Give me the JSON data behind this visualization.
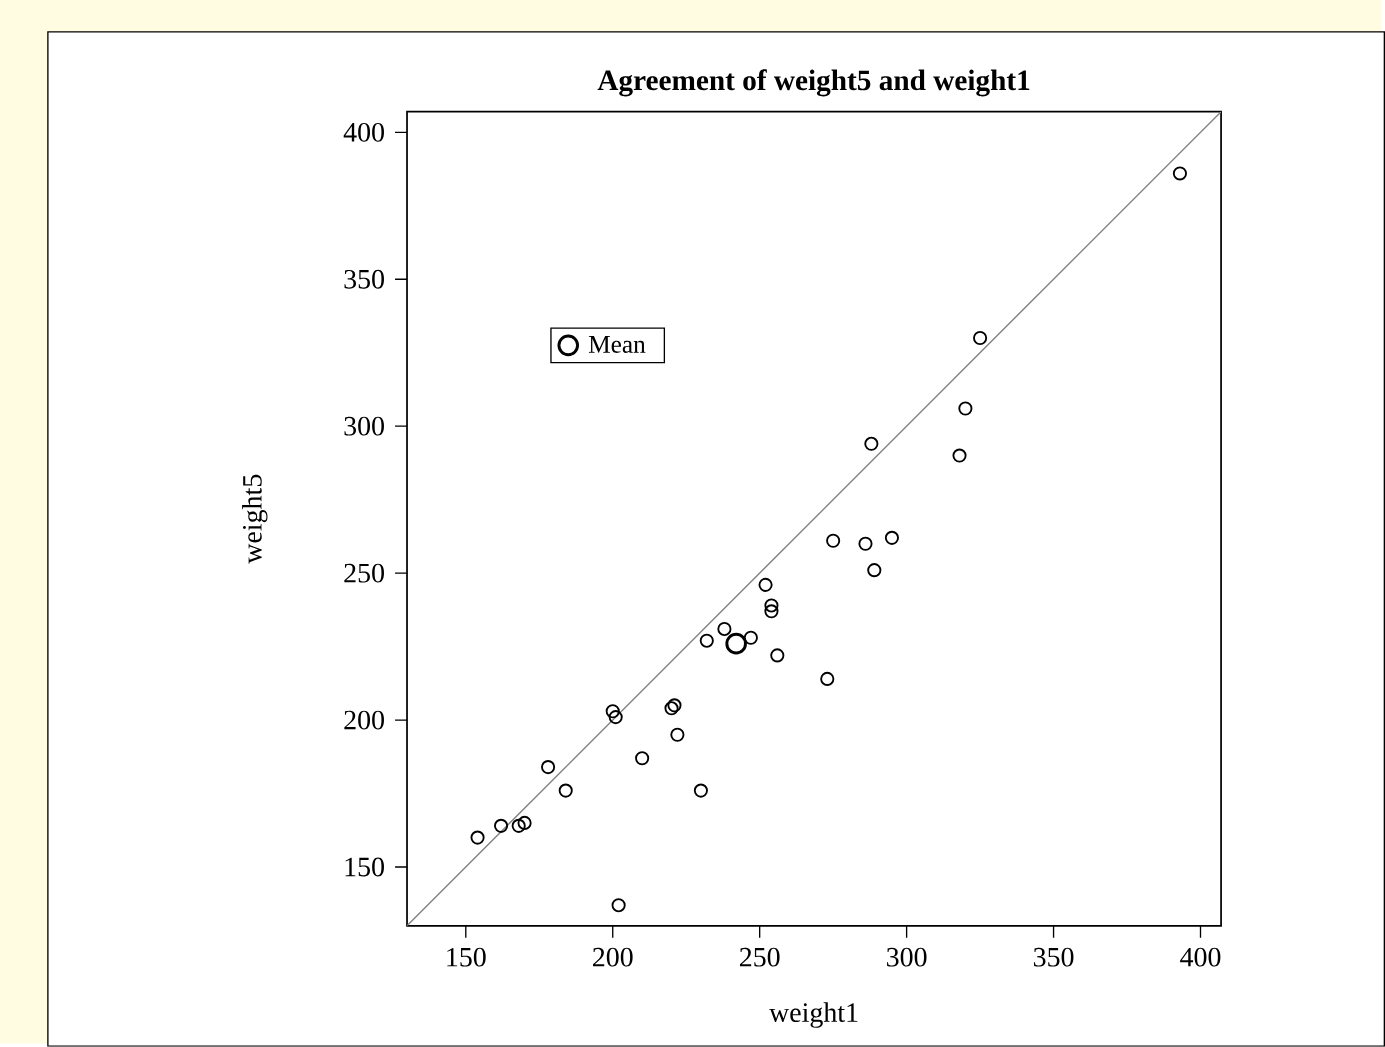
{
  "chart_data": {
    "type": "scatter",
    "title": "Agreement of weight5 and weight1",
    "xlabel": "weight1",
    "ylabel": "weight5",
    "xlim": [
      130,
      407
    ],
    "ylim": [
      130,
      407
    ],
    "xticks": [
      150,
      200,
      250,
      300,
      350,
      400
    ],
    "yticks": [
      150,
      200,
      250,
      300,
      350,
      400
    ],
    "marker": "circle",
    "legend": "top left",
    "grid": false,
    "series": [
      {
        "type": "line",
        "marker": "none",
        "color": "#808080",
        "x": [
          130,
          407
        ],
        "values": [
          130,
          407
        ]
      },
      {
        "color": "#000000",
        "x": [
          154,
          162,
          168,
          170,
          178,
          184,
          200,
          201,
          202,
          210,
          220,
          221,
          222,
          230,
          232,
          238,
          247,
          252,
          254,
          254,
          256,
          273,
          275,
          286,
          289,
          288,
          295,
          318,
          320,
          325,
          393
        ],
        "values": [
          160,
          164,
          164,
          165,
          184,
          176,
          203,
          201,
          137,
          187,
          204,
          205,
          195,
          176,
          227,
          231,
          228,
          246,
          239,
          237,
          222,
          214,
          261,
          260,
          251,
          294,
          262,
          290,
          306,
          330,
          386
        ]
      },
      {
        "name": "Mean",
        "color": "#000000",
        "x": [
          242
        ],
        "values": [
          226
        ]
      }
    ]
  }
}
